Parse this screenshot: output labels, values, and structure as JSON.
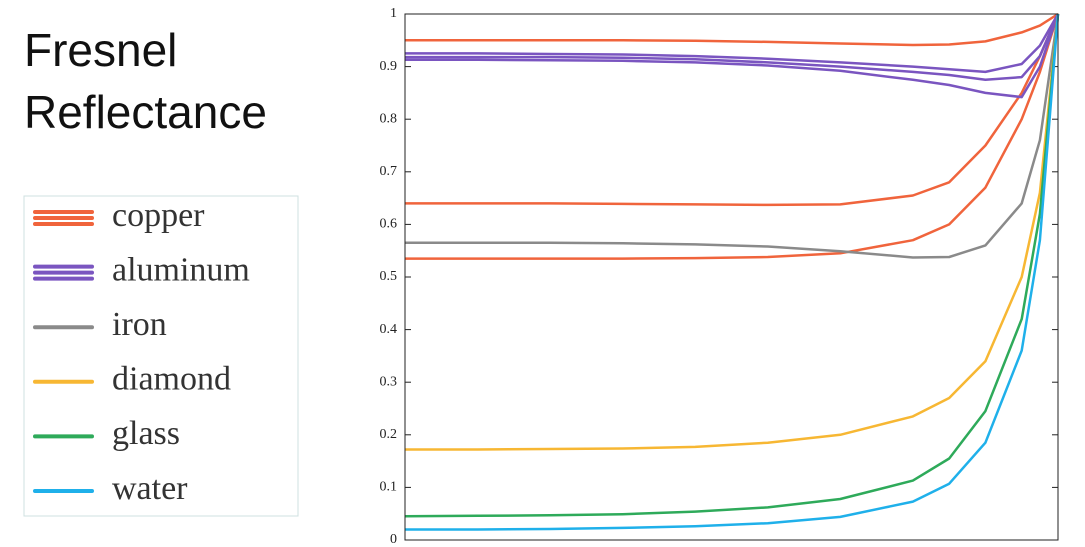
{
  "chart_data": {
    "type": "line",
    "title": [
      "Fresnel",
      "Reflectance"
    ],
    "x": [
      0,
      10,
      20,
      30,
      40,
      50,
      60,
      70,
      75,
      80,
      85,
      87.5,
      90
    ],
    "xlim": [
      0,
      90
    ],
    "ylim": [
      0,
      1
    ],
    "yticks": [
      0,
      0.1,
      0.2,
      0.3,
      0.4,
      0.5,
      0.6,
      0.7,
      0.8,
      0.9,
      1
    ],
    "series": [
      {
        "name": "copper",
        "color": "#f0643c",
        "values": [
          [
            0.95,
            0.95,
            0.95,
            0.95,
            0.949,
            0.947,
            0.944,
            0.941,
            0.942,
            0.948,
            0.965,
            0.978,
            1
          ],
          [
            0.64,
            0.64,
            0.64,
            0.639,
            0.638,
            0.637,
            0.638,
            0.655,
            0.68,
            0.75,
            0.85,
            0.92,
            1
          ],
          [
            0.535,
            0.535,
            0.535,
            0.535,
            0.536,
            0.538,
            0.545,
            0.57,
            0.6,
            0.67,
            0.8,
            0.89,
            1
          ]
        ]
      },
      {
        "name": "aluminum",
        "color": "#7a55c0",
        "values": [
          [
            0.925,
            0.925,
            0.924,
            0.923,
            0.92,
            0.915,
            0.908,
            0.9,
            0.895,
            0.89,
            0.905,
            0.94,
            1
          ],
          [
            0.918,
            0.918,
            0.918,
            0.917,
            0.914,
            0.908,
            0.9,
            0.89,
            0.884,
            0.875,
            0.88,
            0.92,
            1
          ],
          [
            0.913,
            0.913,
            0.912,
            0.911,
            0.908,
            0.902,
            0.892,
            0.875,
            0.865,
            0.85,
            0.842,
            0.9,
            1
          ]
        ]
      },
      {
        "name": "iron",
        "color": "#8a8a8a",
        "values": [
          [
            0.565,
            0.565,
            0.565,
            0.564,
            0.562,
            0.558,
            0.549,
            0.537,
            0.538,
            0.56,
            0.64,
            0.76,
            1
          ]
        ]
      },
      {
        "name": "diamond",
        "color": "#f7b733",
        "values": [
          [
            0.172,
            0.172,
            0.173,
            0.174,
            0.177,
            0.185,
            0.2,
            0.235,
            0.27,
            0.34,
            0.5,
            0.66,
            1
          ]
        ]
      },
      {
        "name": "glass",
        "color": "#2eaa5a",
        "values": [
          [
            0.045,
            0.046,
            0.047,
            0.049,
            0.054,
            0.062,
            0.078,
            0.113,
            0.155,
            0.245,
            0.42,
            0.62,
            1
          ]
        ]
      },
      {
        "name": "water",
        "color": "#1fb0ea",
        "values": [
          [
            0.02,
            0.02,
            0.021,
            0.023,
            0.026,
            0.032,
            0.044,
            0.073,
            0.107,
            0.185,
            0.36,
            0.57,
            1
          ]
        ]
      }
    ]
  }
}
